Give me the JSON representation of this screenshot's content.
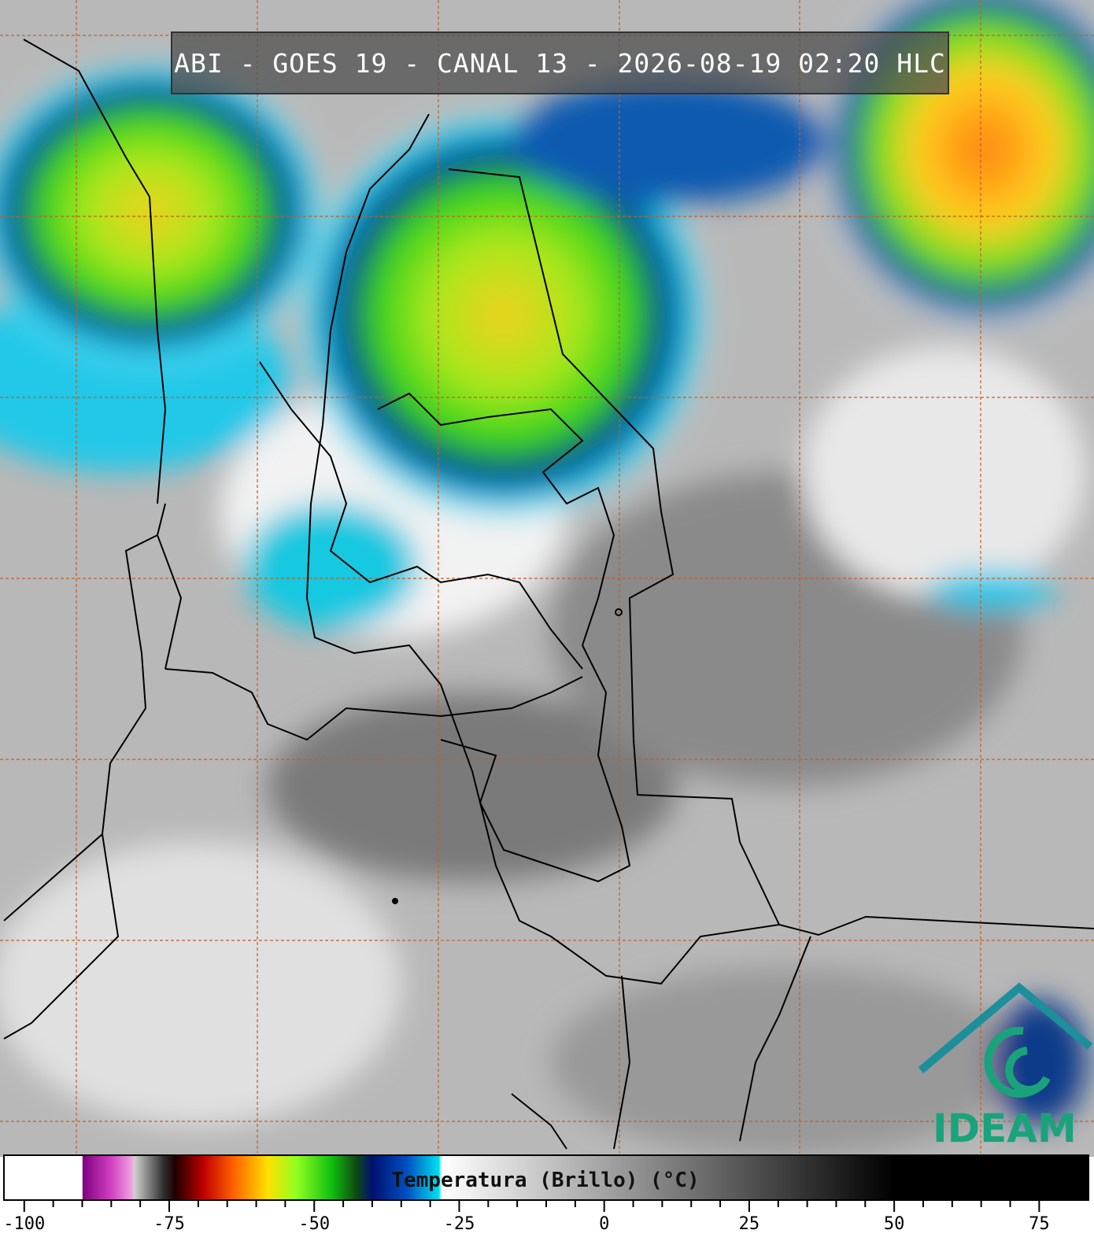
{
  "header": {
    "title": "ABI - GOES 19 - CANAL 13 - 2026-08-19 02:20 HLC"
  },
  "logo": {
    "text": "IDEAM"
  },
  "colorbar": {
    "label": "Temperatura (Brillo) (°C)",
    "range": [
      -103.5,
      83.5
    ],
    "ticks": [
      -100,
      -75,
      -50,
      -25,
      0,
      25,
      50,
      75
    ],
    "stops": [
      {
        "value": -103.5,
        "color": "#ffffff"
      },
      {
        "value": -90,
        "color": "#ffffff"
      },
      {
        "value": -89.9,
        "color": "#800080"
      },
      {
        "value": -85,
        "color": "#d040c0"
      },
      {
        "value": -81.5,
        "color": "#f0a0e0"
      },
      {
        "value": -81,
        "color": "#d0d0d0"
      },
      {
        "value": -76,
        "color": "#303030"
      },
      {
        "value": -74,
        "color": "#200000"
      },
      {
        "value": -69,
        "color": "#c00000"
      },
      {
        "value": -64,
        "color": "#ff6000"
      },
      {
        "value": -58,
        "color": "#ffe000"
      },
      {
        "value": -53,
        "color": "#90ff20"
      },
      {
        "value": -47,
        "color": "#10c010"
      },
      {
        "value": -43,
        "color": "#105010"
      },
      {
        "value": -40,
        "color": "#001070"
      },
      {
        "value": -34,
        "color": "#0050c0"
      },
      {
        "value": -28.5,
        "color": "#00e0f0"
      },
      {
        "value": -28,
        "color": "#ffffff"
      },
      {
        "value": 50,
        "color": "#000000"
      },
      {
        "value": 83.5,
        "color": "#000000"
      }
    ]
  }
}
